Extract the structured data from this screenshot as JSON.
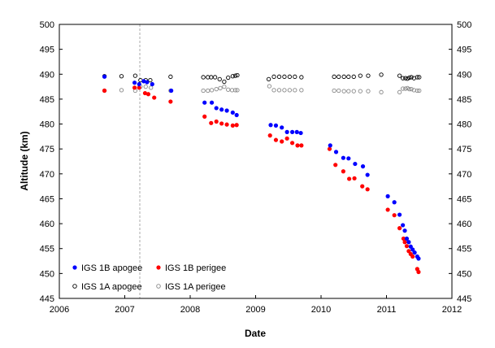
{
  "chart_data": {
    "type": "scatter",
    "title": "",
    "xlabel": "Date",
    "ylabel": "Altitude (km)",
    "xlim": [
      2006,
      2012
    ],
    "ylim": [
      445,
      500
    ],
    "x_ticks": [
      "2006",
      "2007",
      "2008",
      "2009",
      "2010",
      "2011",
      "2012"
    ],
    "y_ticks": [
      "445",
      "450",
      "455",
      "460",
      "465",
      "470",
      "475",
      "480",
      "485",
      "490",
      "495",
      "500"
    ],
    "reference_line_x": 2007.23,
    "legend_position": "bottom-left",
    "series": [
      {
        "name": "IGS 1B apogee",
        "color": "#0000ff",
        "marker": "filled",
        "points": [
          [
            2006.69,
            489.5
          ],
          [
            2007.15,
            488.3
          ],
          [
            2007.22,
            488.0
          ],
          [
            2007.29,
            488.6
          ],
          [
            2007.34,
            488.4
          ],
          [
            2007.42,
            488.0
          ],
          [
            2007.71,
            486.7
          ],
          [
            2008.22,
            484.3
          ],
          [
            2008.33,
            484.3
          ],
          [
            2008.4,
            483.2
          ],
          [
            2008.48,
            482.9
          ],
          [
            2008.56,
            482.7
          ],
          [
            2008.65,
            482.3
          ],
          [
            2008.71,
            481.8
          ],
          [
            2009.23,
            479.8
          ],
          [
            2009.31,
            479.7
          ],
          [
            2009.4,
            479.3
          ],
          [
            2009.48,
            478.4
          ],
          [
            2009.56,
            478.4
          ],
          [
            2009.63,
            478.4
          ],
          [
            2009.69,
            478.2
          ],
          [
            2010.14,
            475.7
          ],
          [
            2010.23,
            474.4
          ],
          [
            2010.34,
            473.2
          ],
          [
            2010.42,
            473.1
          ],
          [
            2010.52,
            472.0
          ],
          [
            2010.64,
            471.5
          ],
          [
            2010.71,
            469.8
          ],
          [
            2011.02,
            465.5
          ],
          [
            2011.12,
            464.3
          ],
          [
            2011.2,
            461.8
          ],
          [
            2011.25,
            459.7
          ],
          [
            2011.28,
            458.6
          ],
          [
            2011.31,
            457.0
          ],
          [
            2011.34,
            456.3
          ],
          [
            2011.37,
            455.4
          ],
          [
            2011.4,
            454.8
          ],
          [
            2011.43,
            454.2
          ],
          [
            2011.47,
            453.4
          ],
          [
            2011.49,
            453.0
          ]
        ]
      },
      {
        "name": "IGS 1B perigee",
        "color": "#ff0000",
        "marker": "filled",
        "points": [
          [
            2006.69,
            486.7
          ],
          [
            2007.15,
            487.3
          ],
          [
            2007.22,
            487.3
          ],
          [
            2007.31,
            486.2
          ],
          [
            2007.36,
            486.0
          ],
          [
            2007.45,
            485.3
          ],
          [
            2007.7,
            484.5
          ],
          [
            2008.22,
            481.5
          ],
          [
            2008.32,
            480.2
          ],
          [
            2008.4,
            480.5
          ],
          [
            2008.48,
            480.1
          ],
          [
            2008.56,
            479.9
          ],
          [
            2008.65,
            479.7
          ],
          [
            2008.71,
            479.8
          ],
          [
            2009.22,
            477.7
          ],
          [
            2009.31,
            476.8
          ],
          [
            2009.4,
            476.5
          ],
          [
            2009.48,
            477.1
          ],
          [
            2009.56,
            476.2
          ],
          [
            2009.64,
            475.7
          ],
          [
            2009.7,
            475.7
          ],
          [
            2010.13,
            475.0
          ],
          [
            2010.22,
            471.8
          ],
          [
            2010.34,
            470.5
          ],
          [
            2010.43,
            469.0
          ],
          [
            2010.51,
            469.1
          ],
          [
            2010.63,
            467.5
          ],
          [
            2010.71,
            466.9
          ],
          [
            2011.02,
            462.8
          ],
          [
            2011.12,
            461.7
          ],
          [
            2011.2,
            459.1
          ],
          [
            2011.26,
            457.0
          ],
          [
            2011.28,
            456.3
          ],
          [
            2011.31,
            455.5
          ],
          [
            2011.34,
            454.5
          ],
          [
            2011.37,
            453.9
          ],
          [
            2011.4,
            453.4
          ],
          [
            2011.47,
            450.9
          ],
          [
            2011.49,
            450.3
          ]
        ]
      },
      {
        "name": "IGS 1A  apogee",
        "color": "#000000",
        "marker": "hollow",
        "points": [
          [
            2006.69,
            489.6
          ],
          [
            2006.95,
            489.6
          ],
          [
            2007.16,
            489.7
          ],
          [
            2007.24,
            488.8
          ],
          [
            2007.32,
            488.8
          ],
          [
            2007.39,
            488.8
          ],
          [
            2007.7,
            489.5
          ],
          [
            2008.2,
            489.4
          ],
          [
            2008.27,
            489.4
          ],
          [
            2008.32,
            489.4
          ],
          [
            2008.38,
            489.4
          ],
          [
            2008.45,
            489.0
          ],
          [
            2008.52,
            488.5
          ],
          [
            2008.58,
            489.3
          ],
          [
            2008.65,
            489.6
          ],
          [
            2008.69,
            489.7
          ],
          [
            2008.72,
            489.8
          ],
          [
            2009.2,
            489.0
          ],
          [
            2009.28,
            489.5
          ],
          [
            2009.36,
            489.5
          ],
          [
            2009.44,
            489.5
          ],
          [
            2009.52,
            489.5
          ],
          [
            2009.6,
            489.5
          ],
          [
            2009.7,
            489.4
          ],
          [
            2010.2,
            489.5
          ],
          [
            2010.27,
            489.5
          ],
          [
            2010.35,
            489.5
          ],
          [
            2010.42,
            489.5
          ],
          [
            2010.5,
            489.5
          ],
          [
            2010.6,
            489.7
          ],
          [
            2010.72,
            489.7
          ],
          [
            2010.92,
            489.9
          ],
          [
            2011.2,
            489.7
          ],
          [
            2011.25,
            489.2
          ],
          [
            2011.29,
            489.2
          ],
          [
            2011.32,
            489.1
          ],
          [
            2011.35,
            489.3
          ],
          [
            2011.38,
            489.4
          ],
          [
            2011.42,
            489.2
          ],
          [
            2011.47,
            489.4
          ],
          [
            2011.5,
            489.4
          ]
        ]
      },
      {
        "name": "IGS 1A  perigee",
        "color": "#888888",
        "marker": "hollow",
        "points": [
          [
            2006.69,
            486.7
          ],
          [
            2006.95,
            486.8
          ],
          [
            2007.16,
            486.7
          ],
          [
            2007.24,
            487.5
          ],
          [
            2007.32,
            487.5
          ],
          [
            2007.4,
            487.3
          ],
          [
            2007.7,
            486.7
          ],
          [
            2008.2,
            486.7
          ],
          [
            2008.27,
            486.7
          ],
          [
            2008.33,
            486.8
          ],
          [
            2008.4,
            487.0
          ],
          [
            2008.46,
            487.2
          ],
          [
            2008.52,
            487.5
          ],
          [
            2008.58,
            486.9
          ],
          [
            2008.64,
            486.8
          ],
          [
            2008.69,
            486.8
          ],
          [
            2008.72,
            486.8
          ],
          [
            2009.21,
            487.6
          ],
          [
            2009.28,
            486.8
          ],
          [
            2009.36,
            486.8
          ],
          [
            2009.44,
            486.8
          ],
          [
            2009.52,
            486.8
          ],
          [
            2009.6,
            486.8
          ],
          [
            2009.7,
            486.8
          ],
          [
            2010.2,
            486.7
          ],
          [
            2010.27,
            486.7
          ],
          [
            2010.35,
            486.6
          ],
          [
            2010.42,
            486.6
          ],
          [
            2010.5,
            486.6
          ],
          [
            2010.6,
            486.6
          ],
          [
            2010.72,
            486.6
          ],
          [
            2010.92,
            486.4
          ],
          [
            2011.2,
            486.4
          ],
          [
            2011.25,
            487.1
          ],
          [
            2011.29,
            487.1
          ],
          [
            2011.32,
            487.2
          ],
          [
            2011.35,
            487.0
          ],
          [
            2011.38,
            487.0
          ],
          [
            2011.42,
            486.8
          ],
          [
            2011.47,
            486.7
          ],
          [
            2011.5,
            486.7
          ]
        ]
      }
    ]
  }
}
